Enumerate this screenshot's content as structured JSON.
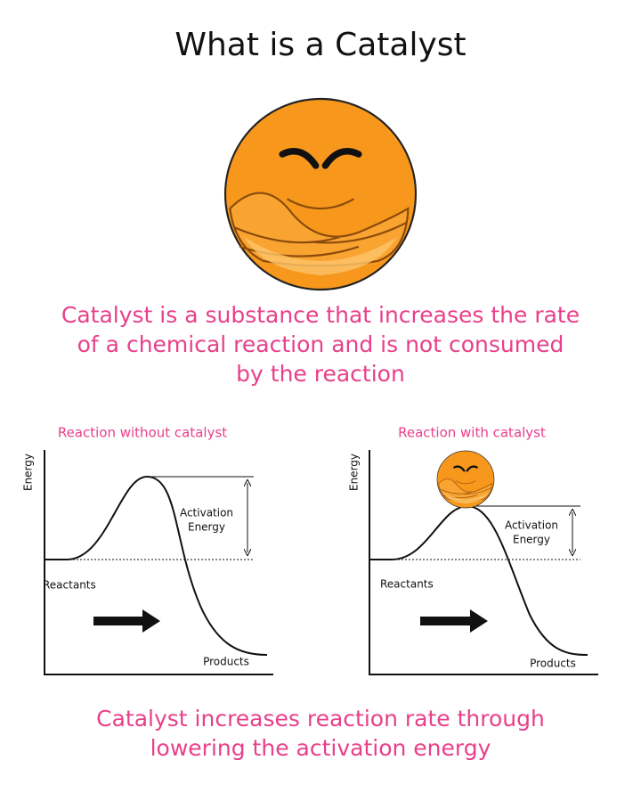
{
  "title": "What is a Catalyst",
  "definition": {
    "lines": [
      "Catalyst is a substance that increases the rate",
      "of a chemical reaction and is not consumed",
      "by the reaction"
    ]
  },
  "diagrams": [
    {
      "title": "Reaction without catalyst",
      "y_label": "Energy",
      "activation_label": [
        "Activation",
        "Energy"
      ],
      "reactants": "Reactants",
      "products": "Products"
    },
    {
      "title": "Reaction with catalyst",
      "y_label": "Energy",
      "activation_label": [
        "Activation",
        "Energy"
      ],
      "reactants": "Reactants",
      "products": "Products"
    }
  ],
  "conclusion": {
    "lines": [
      "Catalyst increases reaction rate through",
      "lowering the activation energy"
    ]
  }
}
